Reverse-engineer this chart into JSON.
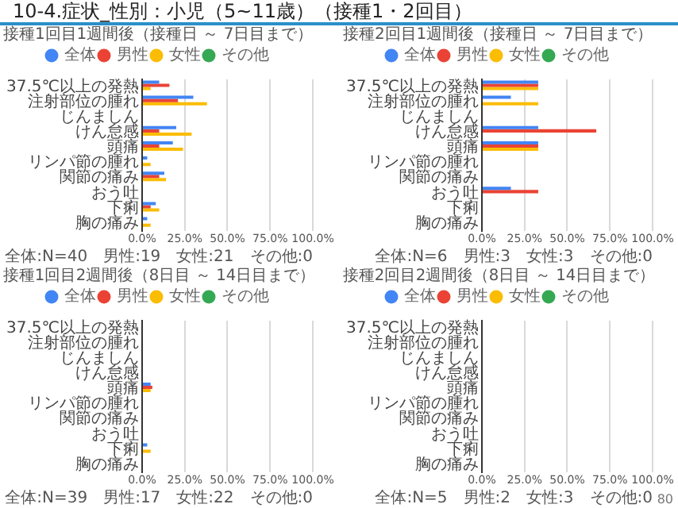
{
  "chart_data": [
    {
      "type": "other",
      "title": "10-4.症状_性別：小児（5~11歳）（接種1・2回目）",
      "annotations": [
        "80"
      ]
    },
    {
      "type": "bar",
      "orientation": "horizontal",
      "title": "接種1回目1週間後（接種日 ～ 7日目まで）",
      "categories": [
        "37.5℃以上の発熱",
        "注射部位の腫れ",
        "じんましん",
        "けん怠感",
        "頭痛",
        "リンパ節の腫れ",
        "関節の痛み",
        "おう吐",
        "下痢",
        "胸の痛み"
      ],
      "series": [
        {
          "name": "全体",
          "color": "#4285f4",
          "values": [
            10,
            30,
            0,
            20,
            18,
            3,
            13,
            0,
            8,
            3
          ]
        },
        {
          "name": "男性",
          "color": "#ea4335",
          "values": [
            16,
            21,
            0,
            10,
            10,
            0,
            10,
            0,
            5,
            0
          ]
        },
        {
          "name": "女性",
          "color": "#fbbc04",
          "values": [
            5,
            38,
            0,
            29,
            24,
            5,
            14,
            0,
            10,
            5
          ]
        },
        {
          "name": "その他",
          "color": "#34a853",
          "values": [
            0,
            0,
            0,
            0,
            0,
            0,
            0,
            0,
            0,
            0
          ]
        }
      ],
      "xlim": [
        0,
        100
      ],
      "xticks": [
        {
          "value": 0,
          "label": "0.0%"
        },
        {
          "value": 25,
          "label": "25.0%"
        },
        {
          "value": 50,
          "label": "50.0%"
        },
        {
          "value": 75,
          "label": "75.0%"
        },
        {
          "value": 100,
          "label": "100.0%"
        }
      ],
      "grid": "x",
      "legend": "top",
      "annotations": [
        "全体:N=40　男性:19　女性:21　その他:0"
      ]
    },
    {
      "type": "bar",
      "orientation": "horizontal",
      "title": "接種2回目1週間後（接種日 ～ 7日目まで）",
      "categories": [
        "37.5℃以上の発熱",
        "注射部位の腫れ",
        "じんましん",
        "けん怠感",
        "頭痛",
        "リンパ節の腫れ",
        "関節の痛み",
        "おう吐",
        "下痢",
        "胸の痛み"
      ],
      "series": [
        {
          "name": "全体",
          "color": "#4285f4",
          "values": [
            33,
            17,
            0,
            33,
            33,
            0,
            0,
            17,
            0,
            0
          ]
        },
        {
          "name": "男性",
          "color": "#ea4335",
          "values": [
            33,
            0,
            0,
            67,
            33,
            0,
            0,
            33,
            0,
            0
          ]
        },
        {
          "name": "女性",
          "color": "#fbbc04",
          "values": [
            33,
            33,
            0,
            0,
            33,
            0,
            0,
            0,
            0,
            0
          ]
        },
        {
          "name": "その他",
          "color": "#34a853",
          "values": [
            0,
            0,
            0,
            0,
            0,
            0,
            0,
            0,
            0,
            0
          ]
        }
      ],
      "xlim": [
        0,
        100
      ],
      "xticks": [
        {
          "value": 0,
          "label": "0.0%"
        },
        {
          "value": 25,
          "label": "25.0%"
        },
        {
          "value": 50,
          "label": "50.0%"
        },
        {
          "value": 75,
          "label": "75.0%"
        },
        {
          "value": 100,
          "label": "100.0%"
        }
      ],
      "grid": "x",
      "legend": "top",
      "annotations": [
        "全体:N=6　男性:3　女性:3　その他:0"
      ]
    },
    {
      "type": "bar",
      "orientation": "horizontal",
      "title": "接種1回目2週間後（8日目 ～ 14日目まで）",
      "categories": [
        "37.5℃以上の発熱",
        "注射部位の腫れ",
        "じんましん",
        "けん怠感",
        "頭痛",
        "リンパ節の腫れ",
        "関節の痛み",
        "おう吐",
        "下痢",
        "胸の痛み"
      ],
      "series": [
        {
          "name": "全体",
          "color": "#4285f4",
          "values": [
            0,
            0,
            0,
            0,
            5,
            0,
            0,
            0,
            3,
            0
          ]
        },
        {
          "name": "男性",
          "color": "#ea4335",
          "values": [
            0,
            0,
            0,
            0,
            6,
            0,
            0,
            0,
            0,
            0
          ]
        },
        {
          "name": "女性",
          "color": "#fbbc04",
          "values": [
            0,
            0,
            0,
            0,
            5,
            0,
            0,
            0,
            5,
            0
          ]
        },
        {
          "name": "その他",
          "color": "#34a853",
          "values": [
            0,
            0,
            0,
            0,
            0,
            0,
            0,
            0,
            0,
            0
          ]
        }
      ],
      "xlim": [
        0,
        100
      ],
      "xticks": [
        {
          "value": 0,
          "label": "0.0%"
        },
        {
          "value": 25,
          "label": "25.0%"
        },
        {
          "value": 50,
          "label": "50.0%"
        },
        {
          "value": 75,
          "label": "75.0%"
        },
        {
          "value": 100,
          "label": "100.0%"
        }
      ],
      "grid": "x",
      "legend": "top",
      "annotations": [
        "全体:N=39　男性:17　女性:22　その他:0"
      ]
    },
    {
      "type": "bar",
      "orientation": "horizontal",
      "title": "接種2回目2週間後（8日目 ～ 14日目まで）",
      "categories": [
        "37.5℃以上の発熱",
        "注射部位の腫れ",
        "じんましん",
        "けん怠感",
        "頭痛",
        "リンパ節の腫れ",
        "関節の痛み",
        "おう吐",
        "下痢",
        "胸の痛み"
      ],
      "series": [
        {
          "name": "全体",
          "color": "#4285f4",
          "values": [
            0,
            0,
            0,
            0,
            0,
            0,
            0,
            0,
            0,
            0
          ]
        },
        {
          "name": "男性",
          "color": "#ea4335",
          "values": [
            0,
            0,
            0,
            0,
            0,
            0,
            0,
            0,
            0,
            0
          ]
        },
        {
          "name": "女性",
          "color": "#fbbc04",
          "values": [
            0,
            0,
            0,
            0,
            0,
            0,
            0,
            0,
            0,
            0
          ]
        },
        {
          "name": "その他",
          "color": "#34a853",
          "values": [
            0,
            0,
            0,
            0,
            0,
            0,
            0,
            0,
            0,
            0
          ]
        }
      ],
      "xlim": [
        0,
        100
      ],
      "xticks": [
        {
          "value": 0,
          "label": "0.0%"
        },
        {
          "value": 25,
          "label": "25.0%"
        },
        {
          "value": 50,
          "label": "50.0%"
        },
        {
          "value": 75,
          "label": "75.0%"
        },
        {
          "value": 100,
          "label": "100.0%"
        }
      ],
      "grid": "x",
      "legend": "top",
      "annotations": [
        "全体:N=5　男性:2　女性:3　その他:0"
      ]
    }
  ]
}
